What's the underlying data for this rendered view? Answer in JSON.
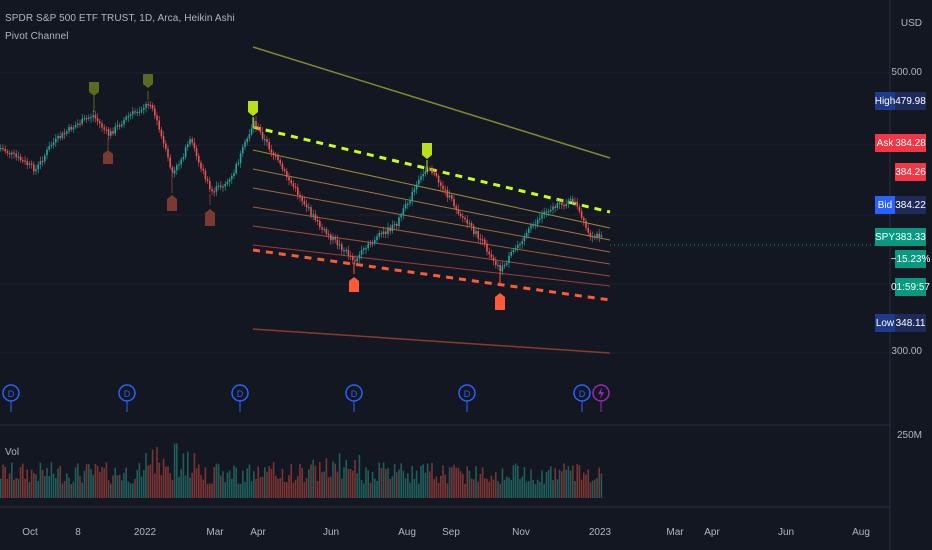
{
  "header": {
    "symbol_line": "SPDR S&P 500 ETF TRUST, 1D, Arca, Heikin Ashi",
    "indicator": "Pivot Channel",
    "volume_label": "Vol"
  },
  "price_axis": {
    "currency": "USD",
    "ticks": [
      "500.00",
      "300.00"
    ],
    "volume_tick": "250M"
  },
  "tags": {
    "high": {
      "key": "High",
      "value": "479.98",
      "color": "#1e3a8a"
    },
    "ask": {
      "key": "Ask",
      "value": "384.28",
      "color": "#f23645"
    },
    "ask2": {
      "value": "384.26",
      "color": "#f23645"
    },
    "bid": {
      "key": "Bid",
      "value": "384.22",
      "color": "#2962ff"
    },
    "spy": {
      "key": "SPY",
      "value": "383.33",
      "change": "−15.23%",
      "countdown": "01:59:57",
      "color": "#089981"
    },
    "low": {
      "key": "Low",
      "value": "348.11",
      "color": "#1e3a8a"
    }
  },
  "time_axis": {
    "labels": [
      "Oct",
      "8",
      "2022",
      "Mar",
      "Apr",
      "Jun",
      "Aug",
      "Sep",
      "Nov",
      "2023",
      "Mar",
      "Apr",
      "Jun",
      "Aug"
    ]
  },
  "colors": {
    "bull": "#26a69a",
    "bear": "#ef5350",
    "upper_channel": "#c6ff1a",
    "lower_channel": "#ff5a36",
    "dividend_icon": "#2962ff",
    "earnings_icon": "#9c27b0"
  },
  "icons": [
    "dividend-marker-icon",
    "earnings-lightning-icon"
  ]
}
